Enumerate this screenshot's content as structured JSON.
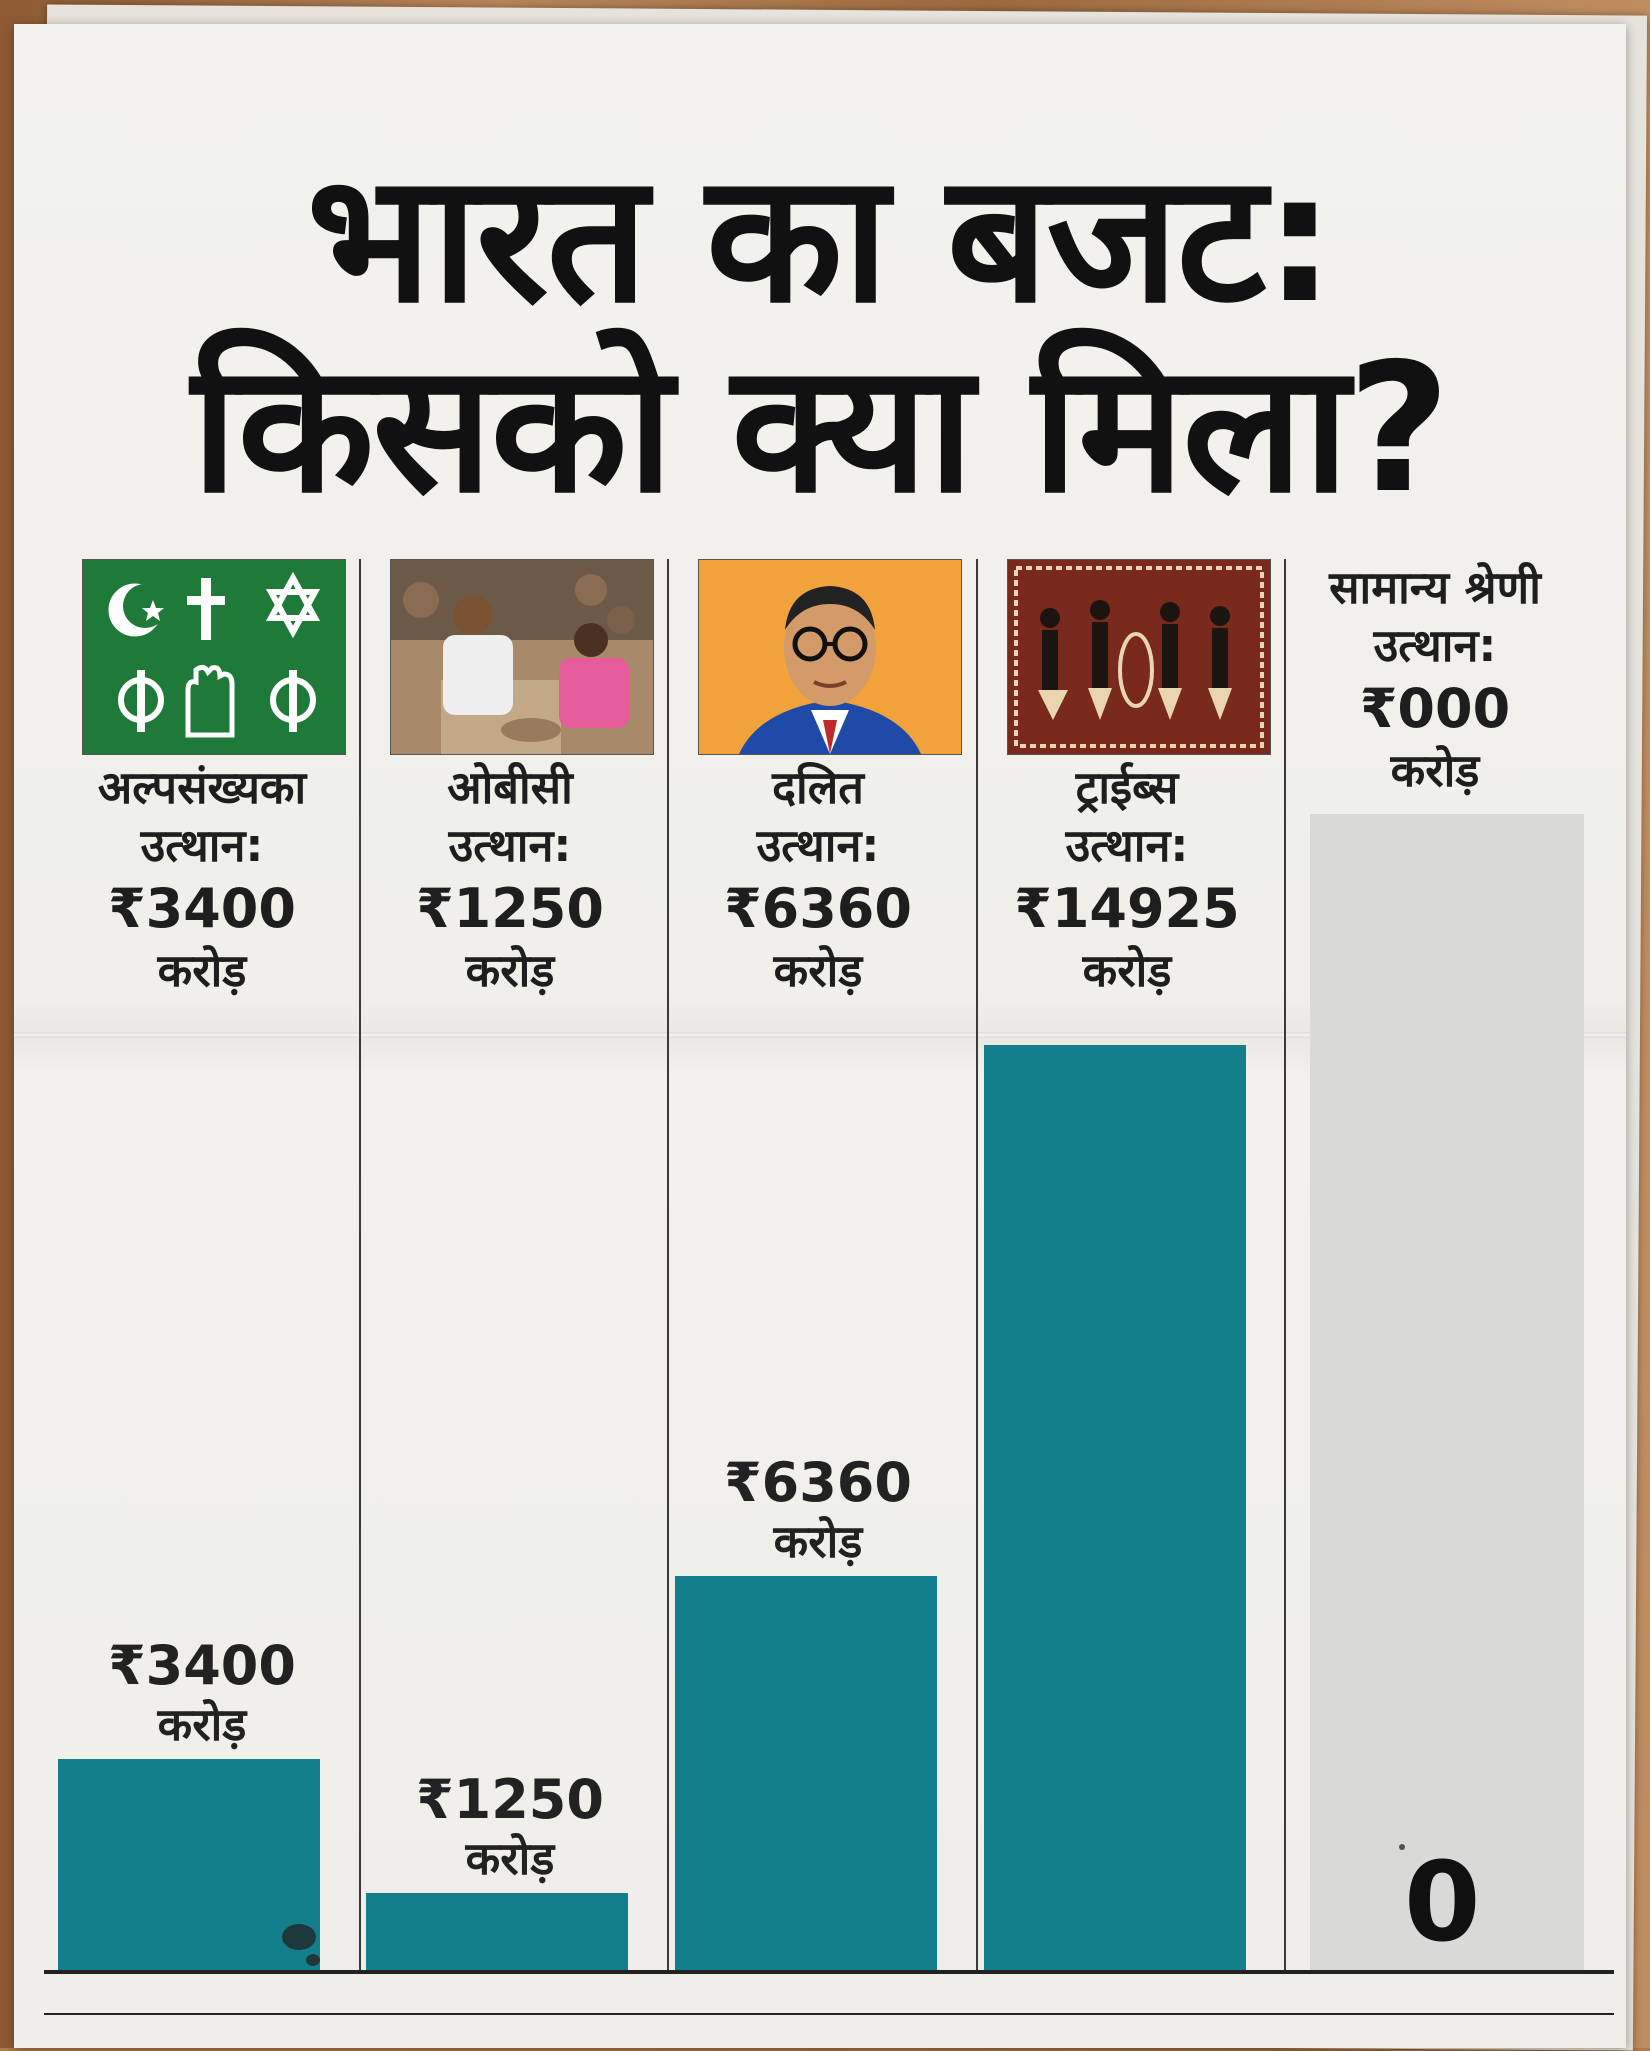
{
  "title": {
    "line1": "भारत का बजट:",
    "line2": "किसको क्या मिला?"
  },
  "colors": {
    "bar": "#147f8c",
    "zero_bar": "#d9d9d7"
  },
  "icons": [
    "religion-symbols-icon",
    "artisans-photo",
    "ambedkar-portrait",
    "tribal-art-painting"
  ],
  "columns": [
    {
      "line1": "अल्पसंख्यका",
      "line2": "उत्थान:",
      "amount": "₹3400",
      "unit": "करोड़",
      "bar_amount": "₹3400",
      "bar_unit": "करोड़"
    },
    {
      "line1": "ओबीसी",
      "line2": "उत्थान:",
      "amount": "₹1250",
      "unit": "करोड़",
      "bar_amount": "₹1250",
      "bar_unit": "करोड़"
    },
    {
      "line1": "दलित",
      "line2": "उत्थान:",
      "amount": "₹6360",
      "unit": "करोड़",
      "bar_amount": "₹6360",
      "bar_unit": "करोड़"
    },
    {
      "line1": "ट्राईब्स",
      "line2": "उत्थान:",
      "amount": "₹14925",
      "unit": "करोड़",
      "bar_amount": "",
      "bar_unit": ""
    },
    {
      "line1": "सामान्य श्रेणी",
      "line2": "उत्थान:",
      "amount": "₹000",
      "unit": "करोड़",
      "bar_amount": "0",
      "bar_unit": ""
    }
  ],
  "chart_data": {
    "type": "bar",
    "title": "भारत का बजट: किसको क्या मिला?",
    "categories": [
      "अल्पसंख्यका उत्थान",
      "ओबीसी उत्थान",
      "दलित उत्थान",
      "ट्राईब्स उत्थान",
      "सामान्य श्रेणी उत्थान"
    ],
    "values": [
      3400,
      1250,
      6360,
      14925,
      0
    ],
    "unit": "करोड़",
    "grid": false,
    "legend": "none"
  }
}
